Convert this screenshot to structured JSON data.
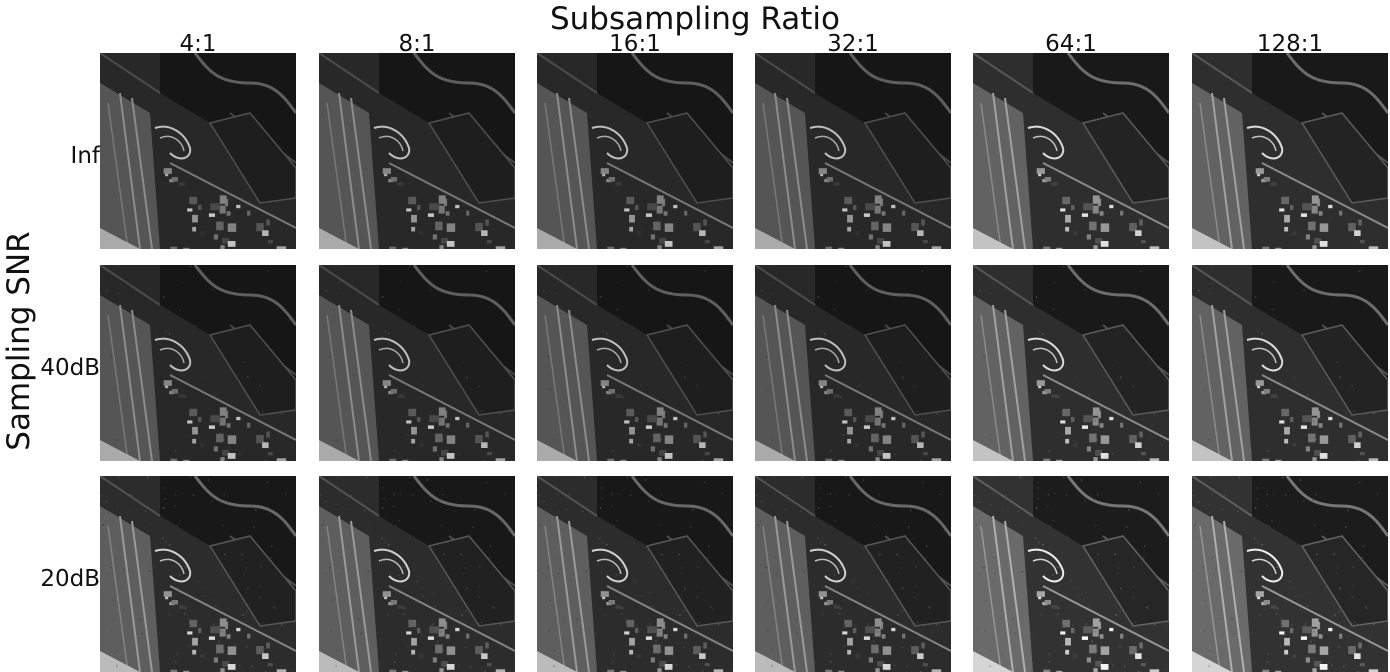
{
  "figure": {
    "title": "Subsampling Ratio",
    "y_title": "Sampling SNR",
    "columns": [
      "4:1",
      "8:1",
      "16:1",
      "32:1",
      "64:1",
      "128:1"
    ],
    "rows": [
      "Inf",
      "40dB",
      "20dB"
    ],
    "image_description_icon": "aerial-airport-image"
  }
}
